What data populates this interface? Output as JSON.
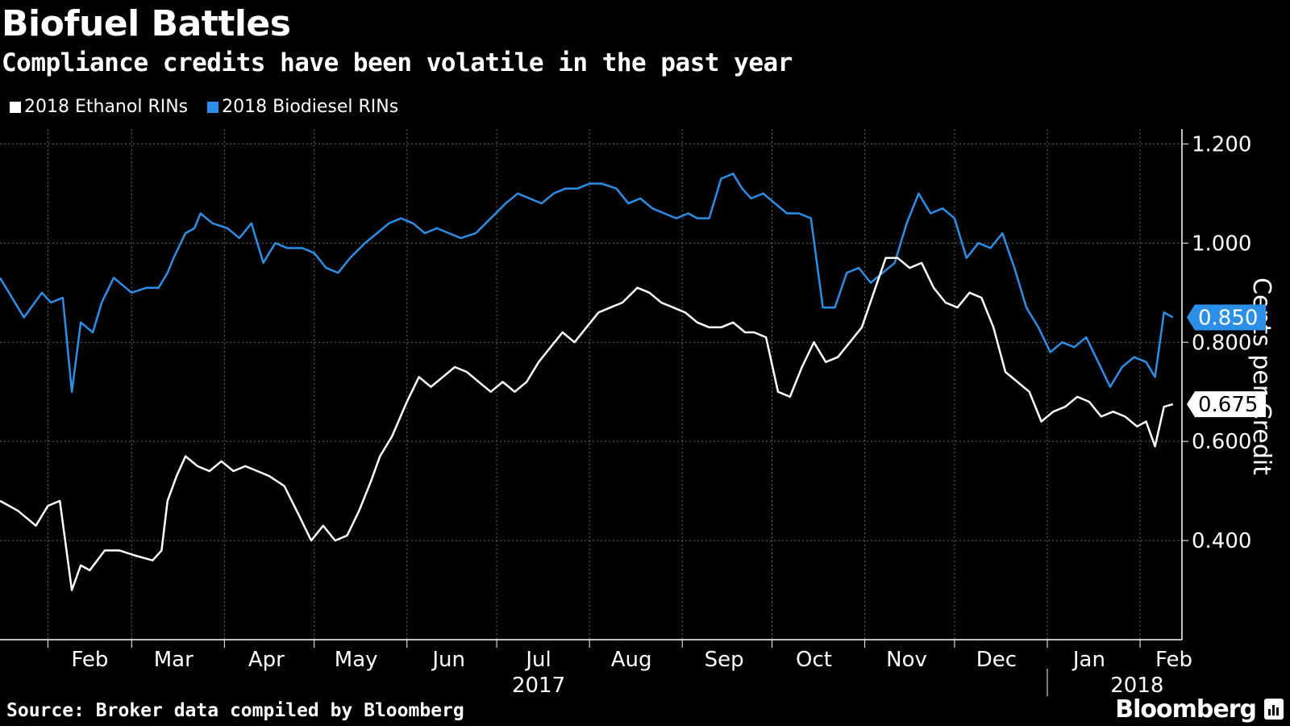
{
  "title": "Biofuel Battles",
  "subtitle": "Compliance credits have been volatile in the past year",
  "legend": {
    "ethanol": "2018 Ethanol RINs",
    "biodiesel": "2018 Biodiesel RINs"
  },
  "source": "Source: Broker data compiled by Bloomberg",
  "brand": "Bloomberg",
  "chart_data": {
    "type": "line",
    "ylabel": "Cents per Credit",
    "ylim": [
      0.2,
      1.23
    ],
    "y_ticks": [
      {
        "value": 1.2,
        "label": "1.200"
      },
      {
        "value": 1.0,
        "label": "1.000"
      },
      {
        "value": 0.8,
        "label": "0.800"
      },
      {
        "value": 0.6,
        "label": "0.600"
      },
      {
        "value": 0.4,
        "label": "0.400"
      }
    ],
    "x_ticks": [
      {
        "date": "2017-02-15",
        "label": "Feb"
      },
      {
        "date": "2017-03-15",
        "label": "Mar"
      },
      {
        "date": "2017-04-15",
        "label": "Apr"
      },
      {
        "date": "2017-05-15",
        "label": "May"
      },
      {
        "date": "2017-06-15",
        "label": "Jun"
      },
      {
        "date": "2017-07-15",
        "label": "Jul"
      },
      {
        "date": "2017-08-15",
        "label": "Aug"
      },
      {
        "date": "2017-09-15",
        "label": "Sep"
      },
      {
        "date": "2017-10-15",
        "label": "Oct"
      },
      {
        "date": "2017-11-15",
        "label": "Nov"
      },
      {
        "date": "2017-12-15",
        "label": "Dec"
      },
      {
        "date": "2018-01-15",
        "label": "Jan"
      },
      {
        "date": "2018-02-15",
        "label": "Feb"
      }
    ],
    "year_labels": [
      {
        "date": "2017-07-15",
        "label": "2017"
      },
      {
        "date": "2018-01-31",
        "label": "2018"
      }
    ],
    "grid": true,
    "legend_position": "top-left",
    "colors": {
      "ethanol": "#ffffff",
      "biodiesel": "#2b8fe8"
    },
    "last_values": {
      "biodiesel": "0.850",
      "ethanol": "0.675"
    },
    "series": [
      {
        "name": "2018 Biodiesel RINs",
        "x": [
          "2017-01-16",
          "2017-01-24",
          "2017-01-30",
          "2017-02-02",
          "2017-02-06",
          "2017-02-09",
          "2017-02-12",
          "2017-02-16",
          "2017-02-19",
          "2017-02-23",
          "2017-03-01",
          "2017-03-06",
          "2017-03-10",
          "2017-03-13",
          "2017-03-15",
          "2017-03-19",
          "2017-03-22",
          "2017-03-24",
          "2017-03-28",
          "2017-04-02",
          "2017-04-06",
          "2017-04-10",
          "2017-04-14",
          "2017-04-18",
          "2017-04-22",
          "2017-04-27",
          "2017-05-01",
          "2017-05-05",
          "2017-05-09",
          "2017-05-13",
          "2017-05-18",
          "2017-05-22",
          "2017-05-26",
          "2017-05-30",
          "2017-06-03",
          "2017-06-07",
          "2017-06-11",
          "2017-06-15",
          "2017-06-19",
          "2017-06-24",
          "2017-06-29",
          "2017-07-04",
          "2017-07-08",
          "2017-07-12",
          "2017-07-16",
          "2017-07-20",
          "2017-07-24",
          "2017-07-28",
          "2017-08-01",
          "2017-08-05",
          "2017-08-10",
          "2017-08-14",
          "2017-08-18",
          "2017-08-22",
          "2017-08-26",
          "2017-08-30",
          "2017-09-03",
          "2017-09-06",
          "2017-09-10",
          "2017-09-14",
          "2017-09-18",
          "2017-09-21",
          "2017-09-24",
          "2017-09-28",
          "2017-10-02",
          "2017-10-06",
          "2017-10-10",
          "2017-10-14",
          "2017-10-18",
          "2017-10-22",
          "2017-10-26",
          "2017-10-30",
          "2017-11-03",
          "2017-11-07",
          "2017-11-11",
          "2017-11-15",
          "2017-11-19",
          "2017-11-23",
          "2017-11-27",
          "2017-12-01",
          "2017-12-05",
          "2017-12-09",
          "2017-12-13",
          "2017-12-17",
          "2017-12-21",
          "2017-12-25",
          "2017-12-29",
          "2018-01-02",
          "2018-01-06",
          "2018-01-10",
          "2018-01-14",
          "2018-01-18",
          "2018-01-22",
          "2018-01-26",
          "2018-01-30",
          "2018-02-03",
          "2018-02-06",
          "2018-02-09",
          "2018-02-12"
        ],
        "values": [
          0.93,
          0.85,
          0.9,
          0.88,
          0.89,
          0.7,
          0.84,
          0.82,
          0.88,
          0.93,
          0.9,
          0.91,
          0.91,
          0.94,
          0.97,
          1.02,
          1.03,
          1.06,
          1.04,
          1.03,
          1.01,
          1.04,
          0.96,
          1.0,
          0.99,
          0.99,
          0.98,
          0.95,
          0.94,
          0.97,
          1.0,
          1.02,
          1.04,
          1.05,
          1.04,
          1.02,
          1.03,
          1.02,
          1.01,
          1.02,
          1.05,
          1.08,
          1.1,
          1.09,
          1.08,
          1.1,
          1.11,
          1.11,
          1.12,
          1.12,
          1.11,
          1.08,
          1.09,
          1.07,
          1.06,
          1.05,
          1.06,
          1.05,
          1.05,
          1.13,
          1.14,
          1.11,
          1.09,
          1.1,
          1.08,
          1.06,
          1.06,
          1.05,
          0.87,
          0.87,
          0.94,
          0.95,
          0.92,
          0.94,
          0.96,
          1.04,
          1.1,
          1.06,
          1.07,
          1.05,
          0.97,
          1.0,
          0.99,
          1.02,
          0.95,
          0.87,
          0.83,
          0.78,
          0.8,
          0.79,
          0.81,
          0.76,
          0.71,
          0.75,
          0.77,
          0.76,
          0.73,
          0.86,
          0.85
        ]
      },
      {
        "name": "2018 Ethanol RINs",
        "x": [
          "2017-01-16",
          "2017-01-22",
          "2017-01-28",
          "2017-02-01",
          "2017-02-05",
          "2017-02-09",
          "2017-02-12",
          "2017-02-15",
          "2017-02-20",
          "2017-02-25",
          "2017-03-02",
          "2017-03-08",
          "2017-03-11",
          "2017-03-13",
          "2017-03-16",
          "2017-03-19",
          "2017-03-23",
          "2017-03-27",
          "2017-03-31",
          "2017-04-04",
          "2017-04-08",
          "2017-04-12",
          "2017-04-16",
          "2017-04-21",
          "2017-04-26",
          "2017-04-30",
          "2017-05-04",
          "2017-05-08",
          "2017-05-12",
          "2017-05-16",
          "2017-05-20",
          "2017-05-23",
          "2017-05-27",
          "2017-06-01",
          "2017-06-05",
          "2017-06-09",
          "2017-06-13",
          "2017-06-17",
          "2017-06-21",
          "2017-06-25",
          "2017-06-29",
          "2017-07-03",
          "2017-07-07",
          "2017-07-11",
          "2017-07-15",
          "2017-07-19",
          "2017-07-23",
          "2017-07-27",
          "2017-07-31",
          "2017-08-04",
          "2017-08-08",
          "2017-08-12",
          "2017-08-17",
          "2017-08-21",
          "2017-08-25",
          "2017-08-29",
          "2017-09-02",
          "2017-09-06",
          "2017-09-10",
          "2017-09-14",
          "2017-09-18",
          "2017-09-22",
          "2017-09-25",
          "2017-09-29",
          "2017-10-03",
          "2017-10-07",
          "2017-10-11",
          "2017-10-15",
          "2017-10-19",
          "2017-10-23",
          "2017-10-27",
          "2017-10-31",
          "2017-11-04",
          "2017-11-08",
          "2017-11-12",
          "2017-11-16",
          "2017-11-20",
          "2017-11-24",
          "2017-11-28",
          "2017-12-02",
          "2017-12-06",
          "2017-12-10",
          "2017-12-14",
          "2017-12-18",
          "2017-12-22",
          "2017-12-26",
          "2017-12-30",
          "2018-01-03",
          "2018-01-07",
          "2018-01-11",
          "2018-01-15",
          "2018-01-19",
          "2018-01-23",
          "2018-01-27",
          "2018-01-31",
          "2018-02-03",
          "2018-02-06",
          "2018-02-09",
          "2018-02-12"
        ],
        "values": [
          0.48,
          0.46,
          0.43,
          0.47,
          0.48,
          0.3,
          0.35,
          0.34,
          0.38,
          0.38,
          0.37,
          0.36,
          0.38,
          0.48,
          0.53,
          0.57,
          0.55,
          0.54,
          0.56,
          0.54,
          0.55,
          0.54,
          0.53,
          0.51,
          0.45,
          0.4,
          0.43,
          0.4,
          0.41,
          0.46,
          0.52,
          0.57,
          0.61,
          0.68,
          0.73,
          0.71,
          0.73,
          0.75,
          0.74,
          0.72,
          0.7,
          0.72,
          0.7,
          0.72,
          0.76,
          0.79,
          0.82,
          0.8,
          0.83,
          0.86,
          0.87,
          0.88,
          0.91,
          0.9,
          0.88,
          0.87,
          0.86,
          0.84,
          0.83,
          0.83,
          0.84,
          0.82,
          0.82,
          0.81,
          0.7,
          0.69,
          0.75,
          0.8,
          0.76,
          0.77,
          0.8,
          0.83,
          0.9,
          0.97,
          0.97,
          0.95,
          0.96,
          0.91,
          0.88,
          0.87,
          0.9,
          0.89,
          0.83,
          0.74,
          0.72,
          0.7,
          0.64,
          0.66,
          0.67,
          0.69,
          0.68,
          0.65,
          0.66,
          0.65,
          0.63,
          0.64,
          0.59,
          0.67,
          0.675
        ]
      }
    ]
  }
}
